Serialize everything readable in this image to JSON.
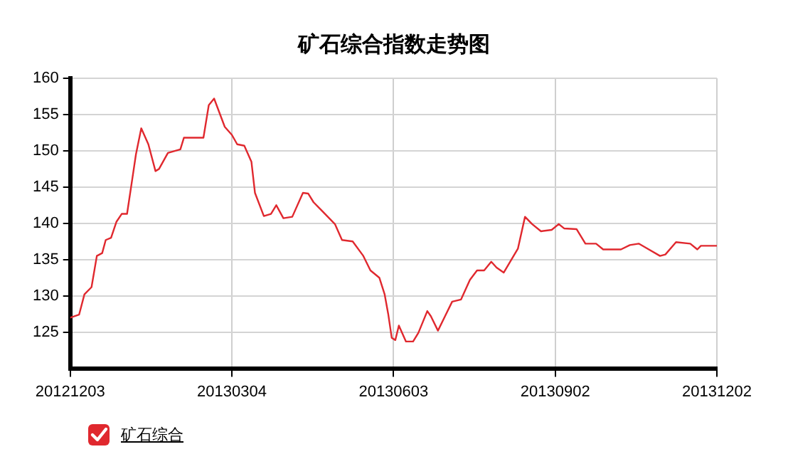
{
  "chart_data": {
    "type": "line",
    "title": "矿石综合指数走势图",
    "x": [
      "2012-12-03",
      "2012-12-08",
      "2012-12-11",
      "2012-12-15",
      "2012-12-18",
      "2012-12-21",
      "2012-12-23",
      "2012-12-26",
      "2012-12-29",
      "2013-01-01",
      "2013-01-04",
      "2013-01-07",
      "2013-01-09",
      "2013-01-12",
      "2013-01-16",
      "2013-01-20",
      "2013-01-22",
      "2013-01-27",
      "2013-02-03",
      "2013-02-05",
      "2013-02-16",
      "2013-02-19",
      "2013-02-22",
      "2013-02-28",
      "2013-03-04",
      "2013-03-07",
      "2013-03-11",
      "2013-03-15",
      "2013-03-17",
      "2013-03-22",
      "2013-03-26",
      "2013-03-29",
      "2013-04-02",
      "2013-04-07",
      "2013-04-13",
      "2013-04-16",
      "2013-04-19",
      "2013-04-23",
      "2013-04-27",
      "2013-05-01",
      "2013-05-05",
      "2013-05-11",
      "2013-05-17",
      "2013-05-21",
      "2013-05-26",
      "2013-05-29",
      "2013-05-31",
      "2013-06-02",
      "2013-06-04",
      "2013-06-06",
      "2013-06-10",
      "2013-06-14",
      "2013-06-17",
      "2013-06-22",
      "2013-06-24",
      "2013-06-28",
      "2013-07-02",
      "2013-07-06",
      "2013-07-11",
      "2013-07-16",
      "2013-07-20",
      "2013-07-24",
      "2013-07-28",
      "2013-07-31",
      "2013-08-04",
      "2013-08-12",
      "2013-08-16",
      "2013-08-20",
      "2013-08-25",
      "2013-08-31",
      "2013-09-04",
      "2013-09-07",
      "2013-09-14",
      "2013-09-19",
      "2013-09-25",
      "2013-09-29",
      "2013-10-09",
      "2013-10-14",
      "2013-10-19",
      "2013-10-24",
      "2013-10-31",
      "2013-11-03",
      "2013-11-09",
      "2013-11-17",
      "2013-11-21",
      "2013-11-23",
      "2013-12-02"
    ],
    "series": [
      {
        "name": "矿石综合",
        "color": "#e0282e",
        "values": [
          127.0,
          127.4,
          130.2,
          131.2,
          135.5,
          135.9,
          137.7,
          138.0,
          140.2,
          141.3,
          141.3,
          146.2,
          149.5,
          153.1,
          150.9,
          147.2,
          147.5,
          149.7,
          150.2,
          151.8,
          151.8,
          156.3,
          157.2,
          153.3,
          152.2,
          150.9,
          150.7,
          148.5,
          144.2,
          141.0,
          141.3,
          142.5,
          140.7,
          140.9,
          144.2,
          144.1,
          142.9,
          141.9,
          140.9,
          139.9,
          137.7,
          137.5,
          135.5,
          133.5,
          132.5,
          130.2,
          127.5,
          124.2,
          123.9,
          125.9,
          123.7,
          123.7,
          124.9,
          127.9,
          127.2,
          125.2,
          127.2,
          129.2,
          129.5,
          132.2,
          133.5,
          133.5,
          134.7,
          133.9,
          133.2,
          136.5,
          140.9,
          139.9,
          138.9,
          139.1,
          139.9,
          139.3,
          139.2,
          137.2,
          137.2,
          136.4,
          136.4,
          137.0,
          137.2,
          136.5,
          135.5,
          135.7,
          137.4,
          137.2,
          136.4,
          136.9,
          136.9
        ]
      }
    ],
    "xlim": [
      "2012-12-03",
      "2013-12-02"
    ],
    "xticks": [
      {
        "value": "2012-12-03",
        "label": "20121203"
      },
      {
        "value": "2013-03-04",
        "label": "20130304"
      },
      {
        "value": "2013-06-03",
        "label": "20130603"
      },
      {
        "value": "2013-09-02",
        "label": "20130902"
      },
      {
        "value": "2013-12-02",
        "label": "20131202"
      }
    ],
    "ylim": [
      120,
      160
    ],
    "yticks": [
      125,
      130,
      135,
      140,
      145,
      150,
      155,
      160
    ],
    "grid": true,
    "legend": "bottom left",
    "marker": "none",
    "line_style": "solid"
  }
}
